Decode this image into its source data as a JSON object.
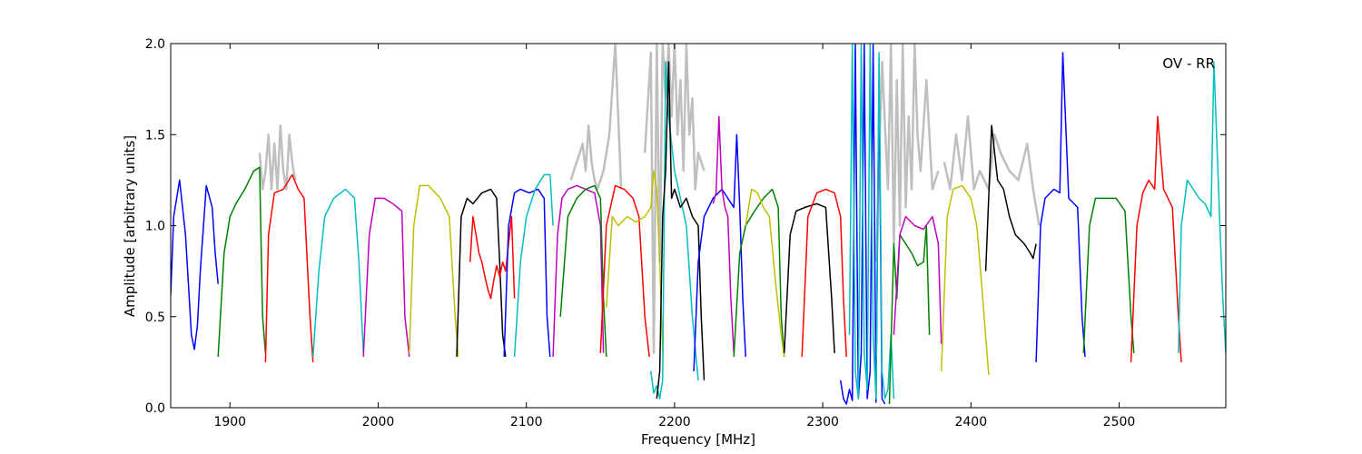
{
  "chart_data": {
    "type": "line",
    "title": "",
    "xlabel": "Frequency [MHz]",
    "ylabel": "Amplitude [arbitrary units]",
    "annotation": "OV - RR",
    "xlim": [
      1860,
      2572
    ],
    "ylim": [
      0.0,
      2.0
    ],
    "xticks": [
      1900,
      2000,
      2100,
      2200,
      2300,
      2400,
      2500
    ],
    "yticks": [
      0.0,
      0.5,
      1.0,
      1.5,
      2.0
    ],
    "xtick_labels": [
      "1900",
      "2000",
      "2100",
      "2200",
      "2300",
      "2400",
      "2500"
    ],
    "ytick_labels": [
      "0.0",
      "0.5",
      "1.0",
      "1.5",
      "2.0"
    ],
    "grid": false,
    "reference_color": "#bfbfbf",
    "series": [
      {
        "color": "#0000ff",
        "x": [
          1860,
          1862,
          1866,
          1870,
          1874,
          1876,
          1878,
          1880,
          1884,
          1888,
          1890,
          1892
        ],
        "y": [
          0.62,
          1.05,
          1.25,
          0.95,
          0.4,
          0.32,
          0.45,
          0.75,
          1.22,
          1.1,
          0.85,
          0.68
        ]
      },
      {
        "color": "#008000",
        "x": [
          1892,
          1896,
          1900,
          1904,
          1910,
          1916,
          1920,
          1922,
          1924
        ],
        "y": [
          0.28,
          0.85,
          1.05,
          1.12,
          1.2,
          1.3,
          1.32,
          0.5,
          0.3
        ]
      },
      {
        "color": "#ff0000",
        "x": [
          1924,
          1926,
          1930,
          1936,
          1942,
          1946,
          1950,
          1954,
          1956
        ],
        "y": [
          0.25,
          0.95,
          1.18,
          1.2,
          1.28,
          1.2,
          1.15,
          0.5,
          0.25
        ]
      },
      {
        "color": "#00bfbf",
        "x": [
          1956,
          1960,
          1964,
          1970,
          1978,
          1984,
          1987,
          1990
        ],
        "y": [
          0.28,
          0.75,
          1.05,
          1.15,
          1.2,
          1.15,
          0.8,
          0.3
        ]
      },
      {
        "color": "#bf00bf",
        "x": [
          1990,
          1994,
          1998,
          2004,
          2010,
          2016,
          2018,
          2021
        ],
        "y": [
          0.28,
          0.95,
          1.15,
          1.15,
          1.12,
          1.08,
          0.5,
          0.28
        ]
      },
      {
        "color": "#bfbf00",
        "x": [
          2021,
          2024,
          2028,
          2034,
          2042,
          2048,
          2052,
          2054
        ],
        "y": [
          0.3,
          1.0,
          1.22,
          1.22,
          1.15,
          1.05,
          0.5,
          0.28
        ]
      },
      {
        "color": "#000000",
        "x": [
          2053,
          2056,
          2060,
          2064,
          2070,
          2076,
          2080,
          2082,
          2084,
          2086
        ],
        "y": [
          0.28,
          1.05,
          1.15,
          1.12,
          1.18,
          1.2,
          1.15,
          0.8,
          0.4,
          0.28
        ]
      },
      {
        "color": "#ff0000",
        "x": [
          2062,
          2064,
          2066,
          2068,
          2070,
          2072,
          2074,
          2076,
          2078,
          2080,
          2082,
          2084,
          2086,
          2088,
          2090,
          2092
        ],
        "y": [
          0.8,
          1.05,
          0.95,
          0.85,
          0.8,
          0.72,
          0.65,
          0.6,
          0.7,
          0.78,
          0.72,
          0.8,
          0.75,
          0.9,
          1.05,
          0.6
        ]
      },
      {
        "color": "#0000ff",
        "x": [
          2085,
          2088,
          2092,
          2096,
          2102,
          2108,
          2112,
          2114,
          2116
        ],
        "y": [
          0.28,
          1.0,
          1.18,
          1.2,
          1.18,
          1.2,
          1.15,
          0.5,
          0.28
        ]
      },
      {
        "color": "#00bfbf",
        "x": [
          2092,
          2096,
          2100,
          2106,
          2112,
          2116,
          2118
        ],
        "y": [
          0.28,
          0.8,
          1.05,
          1.2,
          1.28,
          1.28,
          1.0
        ]
      },
      {
        "color": "#bf00bf",
        "x": [
          2118,
          2121,
          2124,
          2128,
          2134,
          2140,
          2146,
          2150,
          2152
        ],
        "y": [
          0.28,
          0.95,
          1.15,
          1.2,
          1.22,
          1.2,
          1.18,
          1.0,
          0.3
        ]
      },
      {
        "color": "#008000",
        "x": [
          2123,
          2128,
          2134,
          2140,
          2146,
          2150,
          2152,
          2154
        ],
        "y": [
          0.5,
          1.05,
          1.15,
          1.2,
          1.22,
          1.15,
          0.6,
          0.28
        ]
      },
      {
        "color": "#ff0000",
        "x": [
          2150,
          2154,
          2160,
          2166,
          2172,
          2176,
          2180,
          2183
        ],
        "y": [
          0.3,
          1.0,
          1.22,
          1.2,
          1.15,
          1.05,
          0.5,
          0.28
        ]
      },
      {
        "color": "#bfbf00",
        "x": [
          2154,
          2158,
          2162,
          2168,
          2174,
          2180,
          2184,
          2186,
          2188,
          2190,
          2192
        ],
        "y": [
          0.55,
          1.05,
          1.0,
          1.05,
          1.02,
          1.05,
          1.1,
          1.3,
          1.2,
          0.8,
          0.3
        ]
      },
      {
        "color": "#00bfbf",
        "x": [
          2184,
          2186,
          2188,
          2190,
          2192,
          2194,
          2196,
          2200,
          2204,
          2208,
          2212,
          2216
        ],
        "y": [
          0.2,
          0.08,
          0.12,
          0.05,
          0.15,
          1.9,
          1.6,
          1.3,
          1.15,
          1.0,
          0.5,
          0.15
        ]
      },
      {
        "color": "#000000",
        "x": [
          2188,
          2190,
          2192,
          2194,
          2196,
          2198,
          2200,
          2204,
          2208,
          2212,
          2216,
          2218,
          2220
        ],
        "y": [
          0.05,
          0.2,
          1.05,
          1.3,
          1.9,
          1.15,
          1.2,
          1.1,
          1.15,
          1.05,
          1.0,
          0.5,
          0.15
        ]
      },
      {
        "color": "#0000ff",
        "x": [
          2213,
          2216,
          2220,
          2226,
          2232,
          2236,
          2240,
          2242,
          2244,
          2246,
          2248
        ],
        "y": [
          0.2,
          0.8,
          1.05,
          1.15,
          1.2,
          1.15,
          1.1,
          1.5,
          1.1,
          0.6,
          0.28
        ]
      },
      {
        "color": "#bf00bf",
        "x": [
          2226,
          2228,
          2230,
          2232,
          2234,
          2236,
          2238,
          2240
        ],
        "y": [
          1.12,
          1.18,
          1.6,
          1.2,
          1.1,
          1.05,
          0.6,
          0.3
        ]
      },
      {
        "color": "#008000",
        "x": [
          2240,
          2244,
          2248,
          2254,
          2260,
          2266,
          2270,
          2272,
          2274
        ],
        "y": [
          0.28,
          0.85,
          1.0,
          1.08,
          1.15,
          1.2,
          1.1,
          0.5,
          0.28
        ]
      },
      {
        "color": "#bfbf00",
        "x": [
          2248,
          2252,
          2256,
          2260,
          2264,
          2268,
          2272,
          2274
        ],
        "y": [
          1.0,
          1.2,
          1.18,
          1.1,
          1.05,
          0.7,
          0.4,
          0.28
        ]
      },
      {
        "color": "#000000",
        "x": [
          2274,
          2278,
          2282,
          2288,
          2296,
          2302,
          2306,
          2308
        ],
        "y": [
          0.3,
          0.95,
          1.08,
          1.1,
          1.12,
          1.1,
          0.6,
          0.3
        ]
      },
      {
        "color": "#ff0000",
        "x": [
          2286,
          2290,
          2296,
          2302,
          2308,
          2312,
          2314,
          2316
        ],
        "y": [
          0.28,
          1.05,
          1.18,
          1.2,
          1.18,
          1.05,
          0.6,
          0.28
        ]
      },
      {
        "color": "#0000ff",
        "x": [
          2312,
          2314,
          2316,
          2318,
          2320,
          2322,
          2324,
          2326,
          2328,
          2330,
          2332,
          2334,
          2336,
          2338,
          2340,
          2342
        ],
        "y": [
          0.15,
          0.05,
          0.02,
          0.1,
          0.04,
          2.0,
          0.05,
          0.3,
          2.0,
          0.05,
          0.2,
          2.0,
          0.03,
          1.8,
          0.05,
          0.02
        ]
      },
      {
        "color": "#00bfbf",
        "x": [
          2318,
          2320,
          2322,
          2324,
          2326,
          2328,
          2330,
          2332,
          2334,
          2336,
          2338,
          2340,
          2342,
          2344,
          2346,
          2348
        ],
        "y": [
          0.4,
          2.0,
          0.2,
          0.05,
          2.0,
          0.3,
          0.1,
          2.0,
          0.4,
          0.05,
          1.95,
          0.2,
          0.05,
          0.1,
          0.4,
          0.05
        ]
      },
      {
        "color": "#008000",
        "x": [
          2345,
          2348,
          2350,
          2352,
          2356,
          2360,
          2364,
          2368,
          2370,
          2372
        ],
        "y": [
          0.02,
          0.9,
          0.6,
          0.95,
          0.9,
          0.85,
          0.78,
          0.8,
          1.0,
          0.4
        ]
      },
      {
        "color": "#bf00bf",
        "x": [
          2348,
          2352,
          2356,
          2362,
          2368,
          2374,
          2378,
          2380
        ],
        "y": [
          0.4,
          0.95,
          1.05,
          1.0,
          0.98,
          1.05,
          0.9,
          0.35
        ]
      },
      {
        "color": "#bfbf00",
        "x": [
          2380,
          2384,
          2388,
          2394,
          2400,
          2404,
          2408,
          2412
        ],
        "y": [
          0.2,
          1.05,
          1.2,
          1.22,
          1.15,
          1.0,
          0.6,
          0.18
        ]
      },
      {
        "color": "#000000",
        "x": [
          2410,
          2414,
          2418,
          2422,
          2426,
          2430,
          2436,
          2440,
          2442,
          2444
        ],
        "y": [
          0.75,
          1.55,
          1.25,
          1.2,
          1.05,
          0.95,
          0.9,
          0.85,
          0.82,
          0.9
        ]
      },
      {
        "color": "#0000ff",
        "x": [
          2444,
          2447,
          2450,
          2456,
          2460,
          2462,
          2466,
          2472,
          2475,
          2477
        ],
        "y": [
          0.25,
          1.0,
          1.15,
          1.2,
          1.18,
          1.95,
          1.15,
          1.1,
          0.5,
          0.28
        ]
      },
      {
        "color": "#008000",
        "x": [
          2476,
          2480,
          2484,
          2490,
          2498,
          2504,
          2508,
          2510
        ],
        "y": [
          0.3,
          1.0,
          1.15,
          1.15,
          1.15,
          1.08,
          0.5,
          0.3
        ]
      },
      {
        "color": "#ff0000",
        "x": [
          2508,
          2512,
          2516,
          2520,
          2524,
          2526,
          2530,
          2536,
          2540,
          2542
        ],
        "y": [
          0.25,
          1.0,
          1.18,
          1.25,
          1.2,
          1.6,
          1.2,
          1.1,
          0.5,
          0.25
        ]
      },
      {
        "color": "#00bfbf",
        "x": [
          2540,
          2542,
          2546,
          2550,
          2554,
          2558,
          2562,
          2564,
          2568,
          2570,
          2572
        ],
        "y": [
          0.3,
          1.0,
          1.25,
          1.2,
          1.15,
          1.12,
          1.05,
          1.9,
          1.0,
          0.6,
          0.3
        ]
      }
    ],
    "reference_series": [
      {
        "x": [
          1920,
          1922,
          1924,
          1926,
          1928,
          1930,
          1932,
          1934,
          1936,
          1938,
          1940,
          1942,
          1944
        ],
        "y": [
          1.4,
          1.2,
          1.3,
          1.5,
          1.2,
          1.45,
          1.2,
          1.55,
          1.3,
          1.2,
          1.5,
          1.35,
          1.25
        ]
      },
      {
        "x": [
          2130,
          2134,
          2138,
          2140,
          2142,
          2144,
          2146,
          2148,
          2152,
          2156,
          2160,
          2164
        ],
        "y": [
          1.25,
          1.35,
          1.45,
          1.3,
          1.55,
          1.35,
          1.25,
          1.2,
          1.3,
          1.5,
          2.0,
          1.2
        ]
      },
      {
        "x": [
          2180,
          2184,
          2186,
          2188,
          2190,
          2192,
          2194,
          2196,
          2198,
          2200,
          2202,
          2204,
          2206,
          2208,
          2210,
          2212,
          2214,
          2216,
          2220
        ],
        "y": [
          1.4,
          1.95,
          0.3,
          2.0,
          0.8,
          2.0,
          1.7,
          2.0,
          1.6,
          2.0,
          1.5,
          1.8,
          1.3,
          2.0,
          1.5,
          1.7,
          1.2,
          1.4,
          1.3
        ]
      },
      {
        "x": [
          2336,
          2340,
          2344,
          2346,
          2348,
          2350,
          2352,
          2354,
          2356,
          2358,
          2360,
          2362,
          2364,
          2366,
          2370,
          2374,
          2378
        ],
        "y": [
          0.8,
          1.9,
          1.2,
          2.0,
          0.9,
          1.8,
          1.0,
          2.0,
          1.1,
          1.6,
          1.2,
          2.0,
          1.5,
          1.3,
          1.8,
          1.2,
          1.3
        ]
      },
      {
        "x": [
          2382,
          2386,
          2390,
          2394,
          2398,
          2402,
          2406,
          2412,
          2416,
          2420,
          2426,
          2432,
          2438,
          2442,
          2446
        ],
        "y": [
          1.35,
          1.2,
          1.5,
          1.25,
          1.6,
          1.2,
          1.3,
          1.2,
          1.5,
          1.4,
          1.3,
          1.25,
          1.45,
          1.2,
          1.0
        ]
      }
    ]
  }
}
